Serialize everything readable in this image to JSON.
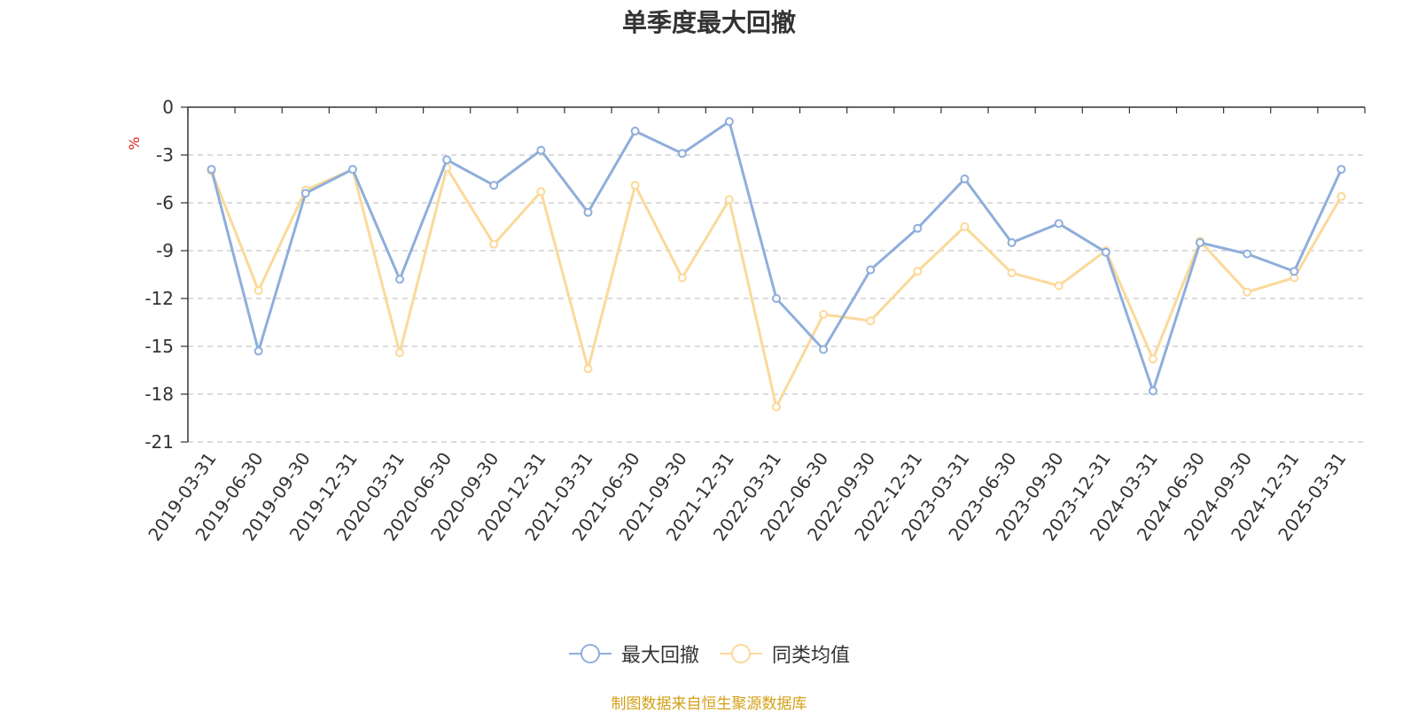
{
  "colors": {
    "series1": "#8FAEDB",
    "series2": "#FBD99A",
    "axis": "#333333",
    "grid": "#C8C8C8",
    "unit": "#E02020",
    "source": "#D4A017"
  },
  "chart_data": {
    "type": "line",
    "title": "单季度最大回撤",
    "unit_label": "%",
    "ylim": [
      -21,
      0
    ],
    "y_ticks": [
      0,
      -3,
      -6,
      -9,
      -12,
      -15,
      -18,
      -21
    ],
    "y_tick_labels": [
      "0",
      "-3",
      "-6",
      "-9",
      "-12",
      "-15",
      "-18",
      "-21"
    ],
    "grid": "horizontal dashed",
    "legend_position": "bottom-center",
    "categories": [
      "2019-03-31",
      "2019-06-30",
      "2019-09-30",
      "2019-12-31",
      "2020-03-31",
      "2020-06-30",
      "2020-09-30",
      "2020-12-31",
      "2021-03-31",
      "2021-06-30",
      "2021-09-30",
      "2021-12-31",
      "2022-03-31",
      "2022-06-30",
      "2022-09-30",
      "2022-12-31",
      "2023-03-31",
      "2023-06-30",
      "2023-09-30",
      "2023-12-31",
      "2024-03-31",
      "2024-06-30",
      "2024-09-30",
      "2024-12-31",
      "2025-03-31"
    ],
    "series": [
      {
        "name": "最大回撤",
        "values": [
          -3.9,
          -15.3,
          -5.4,
          -3.9,
          -10.8,
          -3.3,
          -4.9,
          -2.7,
          -6.6,
          -1.5,
          -2.9,
          -0.9,
          -12.0,
          -15.2,
          -10.2,
          -7.6,
          -4.5,
          -8.5,
          -7.3,
          -9.1,
          -17.8,
          -8.5,
          -9.2,
          -10.3,
          -3.9
        ]
      },
      {
        "name": "同类均值",
        "values": [
          -4.0,
          -11.5,
          -5.2,
          -3.9,
          -15.4,
          -3.8,
          -8.6,
          -5.3,
          -16.4,
          -4.9,
          -10.7,
          -5.8,
          -18.8,
          -13.0,
          -13.4,
          -10.3,
          -7.5,
          -10.4,
          -11.2,
          -9.0,
          -15.8,
          -8.4,
          -11.6,
          -10.7,
          -5.6
        ]
      }
    ]
  },
  "footer": {
    "source": "制图数据来自恒生聚源数据库"
  }
}
